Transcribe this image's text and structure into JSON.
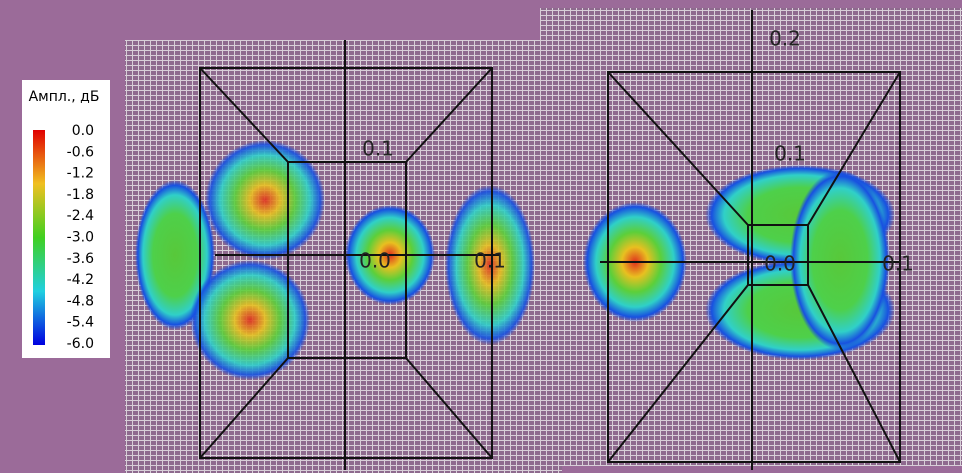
{
  "colorbar": {
    "title": "Ампл., дБ",
    "ticks": [
      "0.0",
      "-0.6",
      "-1.2",
      "-1.8",
      "-2.4",
      "-3.0",
      "-3.6",
      "-4.2",
      "-4.8",
      "-5.4",
      "-6.0"
    ]
  },
  "left_panel": {
    "labels": [
      "0.1",
      "0.0",
      "0.1"
    ]
  },
  "right_panel": {
    "labels": [
      "0.2",
      "0.1",
      "0.0",
      "0.1"
    ]
  }
}
